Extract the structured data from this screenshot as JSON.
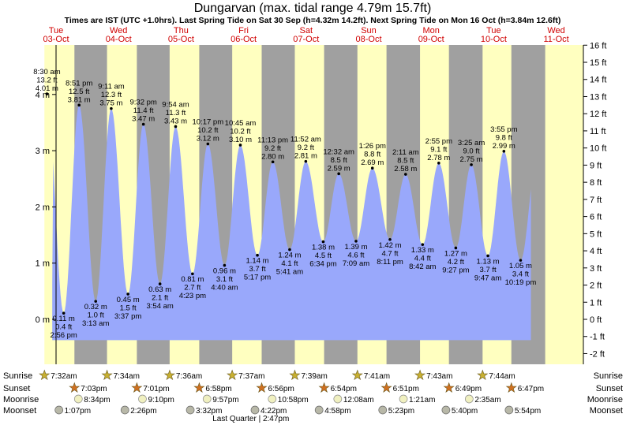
{
  "chart_data": {
    "type": "area",
    "title": "Dungarvan (max. tidal range 4.79m 15.7ft)",
    "subtitle": "Times are IST (UTC +1.0hrs). Last Spring Tide on Sat 30 Sep (h=4.32m 14.2ft). Next Spring Tide on Mon 16 Oct (h=3.84m 12.6ft)",
    "days": [
      {
        "dow": "Tue",
        "date": "03-Oct"
      },
      {
        "dow": "Wed",
        "date": "04-Oct"
      },
      {
        "dow": "Thu",
        "date": "05-Oct"
      },
      {
        "dow": "Fri",
        "date": "06-Oct"
      },
      {
        "dow": "Sat",
        "date": "07-Oct"
      },
      {
        "dow": "Sun",
        "date": "08-Oct"
      },
      {
        "dow": "Mon",
        "date": "09-Oct"
      },
      {
        "dow": "Tue",
        "date": "10-Oct"
      },
      {
        "dow": "Wed",
        "date": "11-Oct"
      }
    ],
    "ylim_m": [
      -0.6,
      4.85
    ],
    "y_ticks_m": [
      {
        "v": 0,
        "label": "0 m"
      },
      {
        "v": 1,
        "label": "1 m"
      },
      {
        "v": 2,
        "label": "2 m"
      },
      {
        "v": 3,
        "label": "3 m"
      },
      {
        "v": 4,
        "label": "4 m"
      }
    ],
    "y_ticks_ft": [
      "-2 ft",
      "-1 ft",
      "0 ft",
      "1 ft",
      "2 ft",
      "3 ft",
      "4 ft",
      "5 ft",
      "6 ft",
      "7 ft",
      "8 ft",
      "9 ft",
      "10 ft",
      "11 ft",
      "12 ft",
      "13 ft",
      "14 ft",
      "15 ft",
      "16 ft"
    ],
    "tides": [
      {
        "day": 0,
        "time": "8:30 am",
        "m": 4.01,
        "ft": "13.2 ft",
        "label_m": "4.01 m",
        "type": "high"
      },
      {
        "day": 0,
        "time": "2:56 pm",
        "m": 0.11,
        "ft": "0.4 ft",
        "label_m": "0.11 m",
        "type": "low"
      },
      {
        "day": 0,
        "time": "8:51 pm",
        "m": 3.81,
        "ft": "12.5 ft",
        "label_m": "3.81 m",
        "type": "high"
      },
      {
        "day": 1,
        "time": "3:13 am",
        "m": 0.32,
        "ft": "1.0 ft",
        "label_m": "0.32 m",
        "type": "low"
      },
      {
        "day": 1,
        "time": "9:11 am",
        "m": 3.75,
        "ft": "12.3 ft",
        "label_m": "3.75 m",
        "type": "high"
      },
      {
        "day": 1,
        "time": "3:37 pm",
        "m": 0.45,
        "ft": "1.5 ft",
        "label_m": "0.45 m",
        "type": "low"
      },
      {
        "day": 1,
        "time": "9:32 pm",
        "m": 3.47,
        "ft": "11.4 ft",
        "label_m": "3.47 m",
        "type": "high"
      },
      {
        "day": 2,
        "time": "3:54 am",
        "m": 0.63,
        "ft": "2.1 ft",
        "label_m": "0.63 m",
        "type": "low"
      },
      {
        "day": 2,
        "time": "9:54 am",
        "m": 3.43,
        "ft": "11.3 ft",
        "label_m": "3.43 m",
        "type": "high"
      },
      {
        "day": 2,
        "time": "4:23 pm",
        "m": 0.81,
        "ft": "2.7 ft",
        "label_m": "0.81 m",
        "type": "low"
      },
      {
        "day": 2,
        "time": "10:17 pm",
        "m": 3.12,
        "ft": "10.2 ft",
        "label_m": "3.12 m",
        "type": "high"
      },
      {
        "day": 3,
        "time": "4:40 am",
        "m": 0.96,
        "ft": "3.1 ft",
        "label_m": "0.96 m",
        "type": "low"
      },
      {
        "day": 3,
        "time": "10:45 am",
        "m": 3.1,
        "ft": "10.2 ft",
        "label_m": "3.10 m",
        "type": "high"
      },
      {
        "day": 3,
        "time": "5:17 pm",
        "m": 1.14,
        "ft": "3.7 ft",
        "label_m": "1.14 m",
        "type": "low"
      },
      {
        "day": 3,
        "time": "11:13 pm",
        "m": 2.8,
        "ft": "9.2 ft",
        "label_m": "2.80 m",
        "type": "high"
      },
      {
        "day": 4,
        "time": "5:41 am",
        "m": 1.24,
        "ft": "4.1 ft",
        "label_m": "1.24 m",
        "type": "low"
      },
      {
        "day": 4,
        "time": "11:52 am",
        "m": 2.81,
        "ft": "9.2 ft",
        "label_m": "2.81 m",
        "type": "high"
      },
      {
        "day": 4,
        "time": "6:34 pm",
        "m": 1.38,
        "ft": "4.5 ft",
        "label_m": "1.38 m",
        "type": "low"
      },
      {
        "day": 5,
        "time": "12:32 am",
        "m": 2.59,
        "ft": "8.5 ft",
        "label_m": "2.59 m",
        "type": "high"
      },
      {
        "day": 5,
        "time": "7:09 am",
        "m": 1.39,
        "ft": "4.6 ft",
        "label_m": "1.39 m",
        "type": "low"
      },
      {
        "day": 5,
        "time": "1:26 pm",
        "m": 2.69,
        "ft": "8.8 ft",
        "label_m": "2.69 m",
        "type": "high"
      },
      {
        "day": 5,
        "time": "8:11 pm",
        "m": 1.42,
        "ft": "4.7 ft",
        "label_m": "1.42 m",
        "type": "low"
      },
      {
        "day": 6,
        "time": "2:11 am",
        "m": 2.58,
        "ft": "8.5 ft",
        "label_m": "2.58 m",
        "type": "high"
      },
      {
        "day": 6,
        "time": "8:42 am",
        "m": 1.33,
        "ft": "4.4 ft",
        "label_m": "1.33 m",
        "type": "low"
      },
      {
        "day": 6,
        "time": "2:55 pm",
        "m": 2.78,
        "ft": "9.1 ft",
        "label_m": "2.78 m",
        "type": "high"
      },
      {
        "day": 6,
        "time": "9:27 pm",
        "m": 1.27,
        "ft": "4.2 ft",
        "label_m": "1.27 m",
        "type": "low"
      },
      {
        "day": 7,
        "time": "3:25 am",
        "m": 2.75,
        "ft": "9.0 ft",
        "label_m": "2.75 m",
        "type": "high"
      },
      {
        "day": 7,
        "time": "9:47 am",
        "m": 1.13,
        "ft": "3.7 ft",
        "label_m": "1.13 m",
        "type": "low"
      },
      {
        "day": 7,
        "time": "3:55 pm",
        "m": 2.99,
        "ft": "9.8 ft",
        "label_m": "2.99 m",
        "type": "high"
      },
      {
        "day": 7,
        "time": "10:19 pm",
        "m": 1.05,
        "ft": "3.4 ft",
        "label_m": "1.05 m",
        "type": "low"
      }
    ],
    "sun": [
      {
        "day": 0,
        "sunrise": "7:32am",
        "sunset": "7:03pm"
      },
      {
        "day": 1,
        "sunrise": "7:34am",
        "sunset": "7:01pm"
      },
      {
        "day": 2,
        "sunrise": "7:36am",
        "sunset": "6:58pm"
      },
      {
        "day": 3,
        "sunrise": "7:37am",
        "sunset": "6:56pm"
      },
      {
        "day": 4,
        "sunrise": "7:39am",
        "sunset": "6:54pm"
      },
      {
        "day": 5,
        "sunrise": "7:41am",
        "sunset": "6:51pm"
      },
      {
        "day": 6,
        "sunrise": "7:43am",
        "sunset": "6:49pm"
      },
      {
        "day": 7,
        "sunrise": "7:44am",
        "sunset": "6:47pm"
      }
    ],
    "moonrise": [
      {
        "day": 0,
        "time": "8:34pm"
      },
      {
        "day": 1,
        "time": "9:10pm"
      },
      {
        "day": 2,
        "time": "9:57pm"
      },
      {
        "day": 3,
        "time": "10:58pm"
      },
      {
        "day": 5,
        "time": "12:08am"
      },
      {
        "day": 6,
        "time": "1:21am"
      },
      {
        "day": 7,
        "time": "2:35am"
      }
    ],
    "moonset": [
      {
        "day": 0,
        "time": "1:07pm"
      },
      {
        "day": 1,
        "time": "2:26pm"
      },
      {
        "day": 2,
        "time": "3:32pm"
      },
      {
        "day": 3,
        "time": "4:22pm"
      },
      {
        "day": 4,
        "time": "4:58pm"
      },
      {
        "day": 5,
        "time": "5:23pm"
      },
      {
        "day": 6,
        "time": "5:40pm"
      },
      {
        "day": 7,
        "time": "5:54pm"
      }
    ],
    "moon_phase": {
      "label": "Last Quarter | 2:47pm",
      "day": 3,
      "time": "2:47pm"
    },
    "row_labels": {
      "sunrise": "Sunrise",
      "sunset": "Sunset",
      "moonrise": "Moonrise",
      "moonset": "Moonset"
    },
    "colors": {
      "water": "#99a8fb",
      "night": "#a0a0a0",
      "day": "#ffffc0",
      "day_name": "#d00000",
      "sunrise_star": "#c8b030",
      "sunset_star": "#d07020",
      "moon": "#f0f0c0",
      "moonset": "#b8b8a8"
    }
  }
}
